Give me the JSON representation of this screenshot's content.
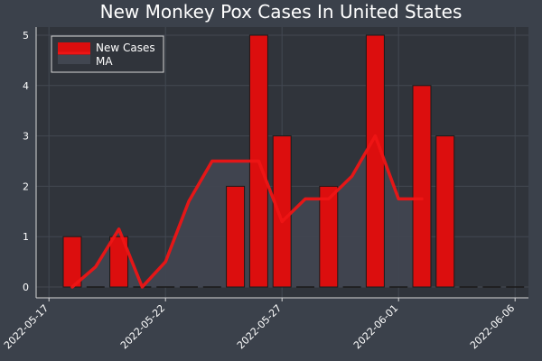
{
  "chart_data": {
    "type": "bar",
    "title": "New Monkey Pox Cases In United States",
    "xlabel": "",
    "ylabel": "",
    "x_dates": [
      "2022-05-18",
      "2022-05-19",
      "2022-05-20",
      "2022-05-21",
      "2022-05-22",
      "2022-05-23",
      "2022-05-24",
      "2022-05-25",
      "2022-05-26",
      "2022-05-27",
      "2022-05-28",
      "2022-05-29",
      "2022-05-30",
      "2022-05-31",
      "2022-06-01",
      "2022-06-02",
      "2022-06-03",
      "2022-06-04",
      "2022-06-05",
      "2022-06-06"
    ],
    "series": [
      {
        "name": "New Cases",
        "type": "bar",
        "values": [
          1,
          0,
          1,
          0,
          0,
          0,
          0,
          2,
          5,
          3,
          0,
          2,
          0,
          5,
          0,
          4,
          3,
          0,
          0,
          0
        ]
      },
      {
        "name": "MA",
        "type": "line",
        "values": [
          0.0,
          0.4,
          1.15,
          0.0,
          0.5,
          1.7,
          2.5,
          2.5,
          2.5,
          1.3,
          1.75,
          1.75,
          2.2,
          3.0,
          1.75,
          1.75
        ]
      }
    ],
    "xticks": [
      "2022-05-17",
      "2022-05-22",
      "2022-05-27",
      "2022-06-01",
      "2022-06-06"
    ],
    "yticks": [
      0,
      1,
      2,
      3,
      4,
      5
    ],
    "ylim": [
      -0.2,
      5.15
    ],
    "grid": true,
    "legend_position": "top-left",
    "colors": {
      "background": "#3b414b",
      "plot_background": "#30343b",
      "bar": "#dc0e0e",
      "line": "#ee1515",
      "ma_fill": "#414650",
      "text": "#ffffff"
    }
  }
}
